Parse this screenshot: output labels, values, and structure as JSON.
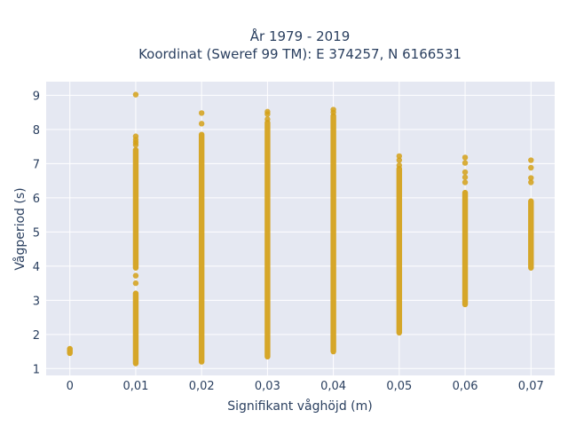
{
  "chart_data": {
    "type": "scatter",
    "title_line1": "År 1979 - 2019",
    "title_line2": "Koordinat (Sweref 99 TM): E 374257, N 6166531",
    "xlabel": "Signifikant våghöjd (m)",
    "ylabel": "Vågperiod (s)",
    "x_ticks": [
      0,
      0.01,
      0.02,
      0.03,
      0.04,
      0.05,
      0.06,
      0.07
    ],
    "x_tick_labels": [
      "0",
      "0,01",
      "0,02",
      "0,03",
      "0,04",
      "0,05",
      "0,06",
      "0,07"
    ],
    "y_ticks": [
      1,
      2,
      3,
      4,
      5,
      6,
      7,
      8,
      9
    ],
    "y_tick_labels": [
      "1",
      "2",
      "3",
      "4",
      "5",
      "6",
      "7",
      "8",
      "9"
    ],
    "xlim": [
      -0.0036,
      0.0736
    ],
    "ylim": [
      0.8,
      9.4
    ],
    "grid": true,
    "marker_color": "#d4a017",
    "plot_bg": "#e5e8f2",
    "columns": [
      {
        "x": 0,
        "segments": [
          [
            1.45,
            1.58
          ]
        ]
      },
      {
        "x": 0.01,
        "segments": [
          [
            1.15,
            3.2
          ],
          [
            3.95,
            7.4
          ]
        ],
        "points": [
          3.5,
          3.72,
          7.55,
          7.62,
          7.7,
          7.8,
          9.02
        ]
      },
      {
        "x": 0.02,
        "segments": [
          [
            1.2,
            7.85
          ]
        ],
        "points": [
          8.17,
          8.48
        ]
      },
      {
        "x": 0.03,
        "segments": [
          [
            1.35,
            8.2
          ]
        ],
        "points": [
          8.3,
          8.45,
          8.52
        ]
      },
      {
        "x": 0.04,
        "segments": [
          [
            1.5,
            8.4
          ]
        ],
        "points": [
          8.5,
          8.58
        ]
      },
      {
        "x": 0.05,
        "segments": [
          [
            2.05,
            6.85
          ]
        ],
        "points": [
          6.95,
          7.1,
          7.22
        ]
      },
      {
        "x": 0.06,
        "segments": [
          [
            2.88,
            6.15
          ]
        ],
        "points": [
          6.45,
          6.6,
          6.75,
          7.02,
          7.18
        ]
      },
      {
        "x": 0.07,
        "segments": [
          [
            3.95,
            5.9
          ]
        ],
        "points": [
          6.45,
          6.58,
          6.88,
          7.1
        ]
      }
    ]
  }
}
